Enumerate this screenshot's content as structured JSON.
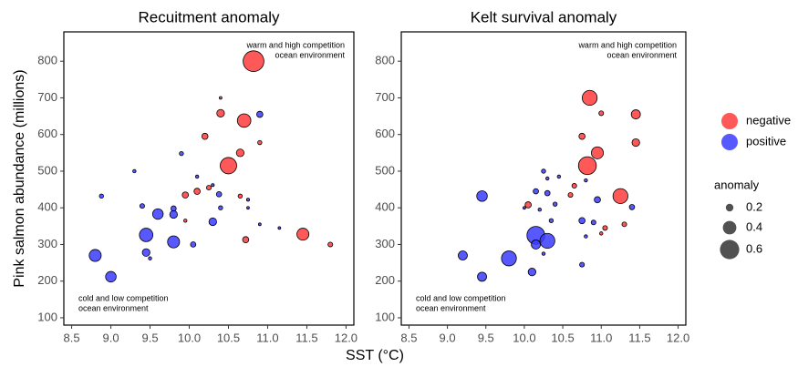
{
  "chart_data": [
    {
      "type": "scatter",
      "title": "Recuitment anomaly",
      "annotations": {
        "top": [
          "warm and high competition",
          "ocean environment"
        ],
        "bottom": [
          "cold and low competition",
          "ocean environment"
        ]
      },
      "xlim": [
        8.4,
        12.1
      ],
      "ylim": [
        80,
        880
      ],
      "xticks": [
        8.5,
        {
          "value": 9,
          "label": "9.0"
        },
        9.5,
        {
          "value": 10,
          "label": "10.0"
        },
        10.5,
        {
          "value": 11,
          "label": "11.0"
        },
        11.5,
        {
          "value": 12,
          "label": "12.0"
        }
      ],
      "yticks": [
        100,
        200,
        300,
        400,
        500,
        600,
        700,
        800
      ],
      "series": [
        {
          "name": "negative",
          "color": "#ff3b3b",
          "x": [
            10.82,
            10.4,
            10.4,
            10.7,
            10.2,
            10.9,
            10.65,
            10.5,
            10.25,
            10.1,
            9.95,
            10.65,
            9.95,
            10.72,
            11.45,
            11.8
          ],
          "y": [
            800,
            700,
            658,
            638,
            595,
            578,
            550,
            515,
            455,
            445,
            435,
            432,
            365,
            313,
            328,
            300
          ],
          "size": [
            0.65,
            0.03,
            0.2,
            0.4,
            0.15,
            0.08,
            0.2,
            0.5,
            0.1,
            0.15,
            0.15,
            0.08,
            0.05,
            0.15,
            0.35,
            0.1
          ]
        },
        {
          "name": "positive",
          "color": "#3b3bff",
          "x": [
            10.9,
            9.9,
            9.3,
            10.1,
            10.3,
            10.38,
            8.88,
            10.75,
            10.4,
            9.4,
            10.75,
            9.8,
            9.6,
            9.8,
            10.3,
            10.9,
            11.15,
            9.45,
            9.8,
            10.05,
            9.45,
            9.5,
            8.8,
            9.0
          ],
          "y": [
            655,
            548,
            500,
            485,
            462,
            437,
            432,
            422,
            400,
            405,
            400,
            398,
            383,
            382,
            362,
            355,
            345,
            326,
            307,
            300,
            278,
            262,
            270,
            212
          ],
          "size": [
            0.15,
            0.08,
            0.05,
            0.05,
            0.04,
            0.12,
            0.08,
            0.04,
            0.08,
            0.1,
            0.03,
            0.12,
            0.3,
            0.2,
            0.2,
            0.03,
            0.03,
            0.4,
            0.35,
            0.12,
            0.2,
            0.05,
            0.35,
            0.3
          ]
        }
      ]
    },
    {
      "type": "scatter",
      "title": "Kelt survival anomaly",
      "annotations": {
        "top": [
          "warm and high competition",
          "ocean environment"
        ],
        "bottom": [
          "cold and low competition",
          "ocean environment"
        ]
      },
      "xlim": [
        8.4,
        12.1
      ],
      "ylim": [
        80,
        880
      ],
      "xticks": [
        8.5,
        {
          "value": 9,
          "label": "9.0"
        },
        9.5,
        {
          "value": 10,
          "label": "10.0"
        },
        10.5,
        {
          "value": 11,
          "label": "11.0"
        },
        11.5,
        {
          "value": 12,
          "label": "12.0"
        }
      ],
      "yticks": [
        100,
        200,
        300,
        400,
        500,
        600,
        700,
        800
      ],
      "series": [
        {
          "name": "negative",
          "color": "#ff3b3b",
          "x": [
            10.85,
            11.0,
            11.45,
            10.75,
            11.45,
            10.95,
            10.82,
            10.65,
            10.6,
            11.25,
            10.05,
            11.05,
            11.3,
            11.0
          ],
          "y": [
            700,
            658,
            655,
            595,
            578,
            550,
            515,
            460,
            435,
            432,
            408,
            345,
            355,
            330
          ],
          "size": [
            0.45,
            0.1,
            0.25,
            0.15,
            0.2,
            0.35,
            0.55,
            0.1,
            0.1,
            0.45,
            0.15,
            0.1,
            0.1,
            0.05
          ]
        },
        {
          "name": "positive",
          "color": "#3b3bff",
          "x": [
            10.25,
            10.45,
            10.3,
            10.8,
            10.15,
            10.3,
            9.45,
            10.4,
            10.0,
            10.2,
            10.95,
            11.4,
            10.75,
            10.35,
            10.9,
            10.8,
            10.15,
            10.3,
            10.15,
            10.25,
            9.2,
            9.8,
            10.1,
            9.45,
            10.75
          ],
          "y": [
            500,
            485,
            480,
            475,
            445,
            440,
            432,
            410,
            400,
            395,
            422,
            402,
            365,
            365,
            360,
            322,
            325,
            310,
            300,
            275,
            270,
            262,
            225,
            212,
            245
          ],
          "size": [
            0.08,
            0.05,
            0.05,
            0.05,
            0.12,
            0.12,
            0.3,
            0.08,
            0.03,
            0.05,
            0.15,
            0.12,
            0.15,
            0.08,
            0.1,
            0.05,
            0.55,
            0.45,
            0.25,
            0.05,
            0.25,
            0.45,
            0.2,
            0.25,
            0.1
          ]
        }
      ]
    }
  ],
  "shared": {
    "xlabel": "SST (°C)",
    "ylabel": "Pink salmon abundance (millions)",
    "size_legend": {
      "title": "anomaly",
      "values": [
        0.2,
        0.4,
        0.6
      ]
    }
  }
}
